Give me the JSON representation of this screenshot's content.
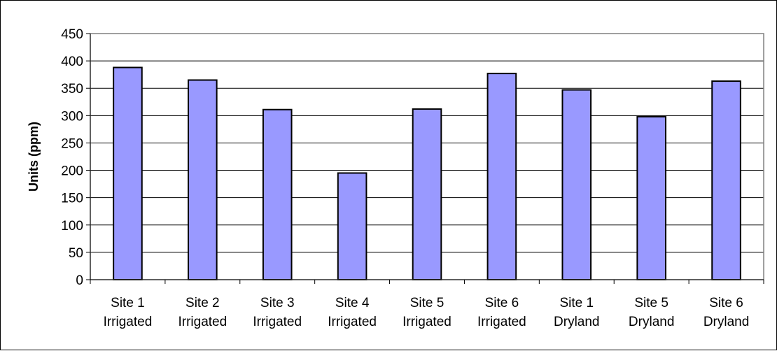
{
  "chart_data": {
    "type": "bar",
    "title": "",
    "xlabel": "",
    "ylabel": "Units (ppm)",
    "ylim": [
      0,
      450
    ],
    "yticks": [
      0,
      50,
      100,
      150,
      200,
      250,
      300,
      350,
      400,
      450
    ],
    "grid": true,
    "legend": "none",
    "categories": [
      [
        "Site 1",
        "Irrigated"
      ],
      [
        "Site 2",
        "Irrigated"
      ],
      [
        "Site 3",
        "Irrigated"
      ],
      [
        "Site 4",
        "Irrigated"
      ],
      [
        "Site 5",
        "Irrigated"
      ],
      [
        "Site 6",
        "Irrigated"
      ],
      [
        "Site 1",
        "Dryland"
      ],
      [
        "Site 5",
        "Dryland"
      ],
      [
        "Site 6",
        "Dryland"
      ]
    ],
    "values": [
      388,
      365,
      311,
      195,
      312,
      377,
      347,
      298,
      363
    ],
    "colors": {
      "bar_fill": "#9999ff",
      "bar_stroke": "#000000",
      "plot_background": "#ffffff",
      "gridline": "#000000",
      "plot_border": "#808080"
    }
  }
}
